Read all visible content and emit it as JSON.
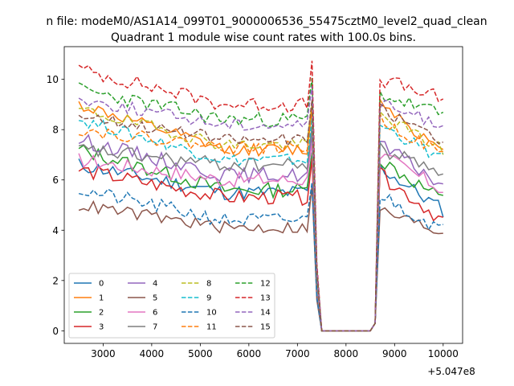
{
  "figure_title": "n file: modeM0/AS1A14_099T01_9000006536_55475cztM0_level2_quad_clean",
  "chart_data": {
    "type": "line",
    "title": "Quadrant 1 module wise count rates with 100.0s bins.",
    "xlabel": "",
    "ylabel": "",
    "x_offset_label": "+5.047e8",
    "xlim": [
      2200,
      10400
    ],
    "ylim": [
      -0.5,
      11.3
    ],
    "x_ticks": [
      3000,
      4000,
      5000,
      6000,
      7000,
      8000,
      9000,
      10000
    ],
    "y_ticks": [
      0,
      2,
      4,
      6,
      8,
      10
    ],
    "x_tick_labels": [
      "3000",
      "4000",
      "5000",
      "6000",
      "7000",
      "8000",
      "9000",
      "10000"
    ],
    "y_tick_labels": [
      "0",
      "2",
      "4",
      "6",
      "8",
      "10"
    ],
    "x_start": 2500,
    "x_step": 100,
    "legend_placement": "lower-left",
    "series": [
      {
        "name": "0",
        "color": "#1f77b4",
        "dash": "solid",
        "seed": 11,
        "pre": [
          6.6,
          5.5
        ],
        "post": [
          6.5,
          4.8
        ],
        "noise": 0.3
      },
      {
        "name": "1",
        "color": "#ff7f0e",
        "dash": "solid",
        "seed": 12,
        "pre": [
          9.0,
          7.2
        ],
        "post": [
          9.2,
          7.0
        ],
        "noise": 0.25
      },
      {
        "name": "2",
        "color": "#2ca02c",
        "dash": "solid",
        "seed": 13,
        "pre": [
          7.2,
          5.6
        ],
        "post": [
          6.8,
          5.2
        ],
        "noise": 0.3
      },
      {
        "name": "3",
        "color": "#d62728",
        "dash": "solid",
        "seed": 14,
        "pre": [
          6.4,
          5.3
        ],
        "post": [
          6.2,
          4.4
        ],
        "noise": 0.3
      },
      {
        "name": "4",
        "color": "#9467bd",
        "dash": "solid",
        "seed": 15,
        "pre": [
          7.6,
          6.2
        ],
        "post": [
          7.4,
          5.8
        ],
        "noise": 0.3
      },
      {
        "name": "5",
        "color": "#8c564b",
        "dash": "solid",
        "seed": 16,
        "pre": [
          5.0,
          4.1
        ],
        "post": [
          4.8,
          3.9
        ],
        "noise": 0.25
      },
      {
        "name": "6",
        "color": "#e377c2",
        "dash": "solid",
        "seed": 17,
        "pre": [
          6.8,
          6.0
        ],
        "post": [
          7.0,
          5.6
        ],
        "noise": 0.3
      },
      {
        "name": "7",
        "color": "#7f7f7f",
        "dash": "solid",
        "seed": 18,
        "pre": [
          7.2,
          6.6
        ],
        "post": [
          7.2,
          6.4
        ],
        "noise": 0.3
      },
      {
        "name": "8",
        "color": "#bcbd22",
        "dash": "dashed",
        "seed": 19,
        "pre": [
          8.8,
          7.4
        ],
        "post": [
          8.6,
          7.2
        ],
        "noise": 0.25
      },
      {
        "name": "9",
        "color": "#17becf",
        "dash": "dashed",
        "seed": 20,
        "pre": [
          8.4,
          6.8
        ],
        "post": [
          8.2,
          6.8
        ],
        "noise": 0.25
      },
      {
        "name": "10",
        "color": "#1f77b4",
        "dash": "dashed",
        "seed": 21,
        "pre": [
          5.6,
          4.4
        ],
        "post": [
          5.4,
          4.0
        ],
        "noise": 0.3
      },
      {
        "name": "11",
        "color": "#ff7f0e",
        "dash": "dashed",
        "seed": 22,
        "pre": [
          8.0,
          7.3
        ],
        "post": [
          8.4,
          7.0
        ],
        "noise": 0.25
      },
      {
        "name": "12",
        "color": "#2ca02c",
        "dash": "dashed",
        "seed": 23,
        "pre": [
          9.6,
          8.4
        ],
        "post": [
          9.4,
          8.6
        ],
        "noise": 0.3
      },
      {
        "name": "13",
        "color": "#d62728",
        "dash": "dashed",
        "seed": 24,
        "pre": [
          10.4,
          9.0
        ],
        "post": [
          10.0,
          9.2
        ],
        "noise": 0.3
      },
      {
        "name": "14",
        "color": "#9467bd",
        "dash": "dashed",
        "seed": 25,
        "pre": [
          9.2,
          8.2
        ],
        "post": [
          9.0,
          8.2
        ],
        "noise": 0.25
      },
      {
        "name": "15",
        "color": "#8c564b",
        "dash": "dashed",
        "seed": 26,
        "pre": [
          8.6,
          7.6
        ],
        "post": [
          8.8,
          7.6
        ],
        "noise": 0.25
      }
    ],
    "gap": {
      "drop_start": 7300,
      "zero_from": 7500,
      "zero_to": 8600,
      "rise_end": 8700
    }
  }
}
